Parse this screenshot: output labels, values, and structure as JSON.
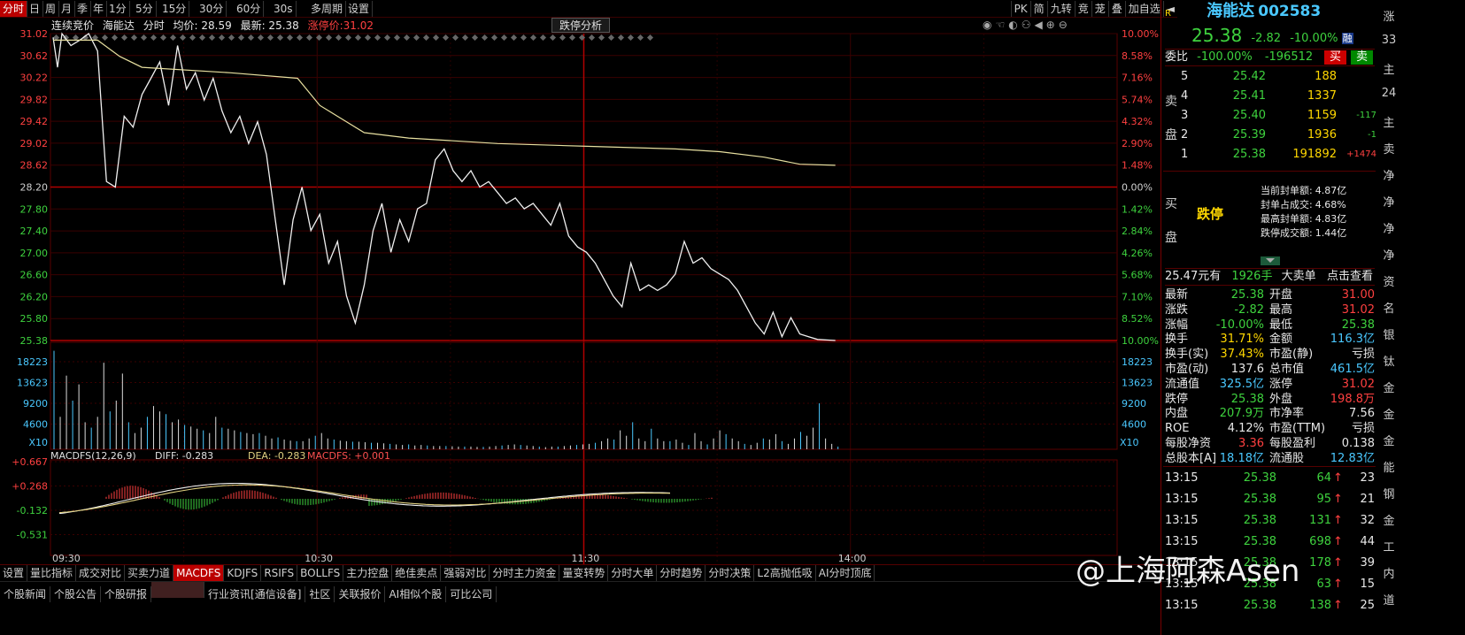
{
  "top_tabs": [
    "分时",
    "日",
    "周",
    "月",
    "季",
    "年",
    "1分",
    "5分",
    "15分",
    "30分",
    "60分",
    "30s",
    "多周期",
    "设置"
  ],
  "top_right": [
    "PK",
    "简",
    "九转",
    "竞",
    "茏",
    "叠",
    "加自选"
  ],
  "info": {
    "mode": "连续竞价",
    "name": "海能达",
    "label_fs": "分时",
    "avg": "均价: 28.59",
    "latest": "最新: 25.38",
    "limit": "涨停价:31.02"
  },
  "analysis_btn": "跌停分析",
  "price_axis": {
    "left": [
      "31.02",
      "30.62",
      "30.22",
      "29.82",
      "29.42",
      "29.02",
      "28.62",
      "28.20",
      "27.80",
      "27.40",
      "27.00",
      "26.60",
      "26.20",
      "25.80",
      "25.38"
    ],
    "right": [
      "10.00%",
      "8.58%",
      "7.16%",
      "5.74%",
      "4.32%",
      "2.90%",
      "1.48%",
      "0.00%",
      "1.42%",
      "2.84%",
      "4.26%",
      "5.68%",
      "7.10%",
      "8.52%",
      "10.00%"
    ]
  },
  "volume_axis": {
    "ticks": [
      "18223",
      "13623",
      "9200",
      "4600"
    ],
    "unit": "X10"
  },
  "macd_header": {
    "title": "MACDFS(12,26,9)",
    "diff": "DIFF: -0.283",
    "dea": "DEA: -0.283",
    "macdfs": "MACDFS: +0.001"
  },
  "macd_axis": [
    "+0.667",
    "+0.268",
    "-0.132",
    "-0.531"
  ],
  "time_labels": [
    "09:30",
    "10:30",
    "11:30",
    "14:00"
  ],
  "chart_data": {
    "type": "line",
    "title": "海能达 分时",
    "x_start": "09:30",
    "price_series": [
      [
        0,
        30.95
      ],
      [
        1,
        30.4
      ],
      [
        2,
        31.02
      ],
      [
        4,
        30.8
      ],
      [
        6,
        30.9
      ],
      [
        8,
        31.02
      ],
      [
        10,
        30.7
      ],
      [
        12,
        28.3
      ],
      [
        14,
        28.2
      ],
      [
        16,
        29.5
      ],
      [
        18,
        29.3
      ],
      [
        20,
        29.9
      ],
      [
        22,
        30.2
      ],
      [
        24,
        30.5
      ],
      [
        26,
        29.7
      ],
      [
        28,
        30.8
      ],
      [
        30,
        30.0
      ],
      [
        32,
        30.3
      ],
      [
        34,
        29.8
      ],
      [
        36,
        30.2
      ],
      [
        38,
        29.6
      ],
      [
        40,
        29.2
      ],
      [
        42,
        29.5
      ],
      [
        44,
        29.0
      ],
      [
        46,
        29.4
      ],
      [
        48,
        28.8
      ],
      [
        50,
        27.6
      ],
      [
        52,
        26.4
      ],
      [
        54,
        27.6
      ],
      [
        56,
        28.2
      ],
      [
        58,
        27.4
      ],
      [
        60,
        27.7
      ],
      [
        62,
        26.8
      ],
      [
        64,
        27.2
      ],
      [
        66,
        26.2
      ],
      [
        68,
        25.7
      ],
      [
        70,
        26.4
      ],
      [
        72,
        27.4
      ],
      [
        74,
        27.9
      ],
      [
        76,
        27.0
      ],
      [
        78,
        27.6
      ],
      [
        80,
        27.2
      ],
      [
        82,
        27.8
      ],
      [
        84,
        27.9
      ],
      [
        86,
        28.7
      ],
      [
        88,
        28.9
      ],
      [
        90,
        28.5
      ],
      [
        92,
        28.3
      ],
      [
        94,
        28.5
      ],
      [
        96,
        28.2
      ],
      [
        98,
        28.3
      ],
      [
        100,
        28.1
      ],
      [
        102,
        27.9
      ],
      [
        104,
        28.0
      ],
      [
        106,
        27.8
      ],
      [
        108,
        27.9
      ],
      [
        110,
        27.7
      ],
      [
        112,
        27.5
      ],
      [
        114,
        27.9
      ],
      [
        116,
        27.3
      ],
      [
        118,
        27.1
      ],
      [
        120,
        27.0
      ],
      [
        122,
        26.8
      ],
      [
        124,
        26.5
      ],
      [
        126,
        26.2
      ],
      [
        128,
        26.0
      ],
      [
        130,
        26.8
      ],
      [
        132,
        26.3
      ],
      [
        134,
        26.4
      ],
      [
        136,
        26.3
      ],
      [
        138,
        26.4
      ],
      [
        140,
        26.6
      ],
      [
        142,
        27.2
      ],
      [
        144,
        26.8
      ],
      [
        146,
        26.9
      ],
      [
        148,
        26.7
      ],
      [
        150,
        26.6
      ],
      [
        152,
        26.5
      ],
      [
        154,
        26.3
      ],
      [
        156,
        26.0
      ],
      [
        158,
        25.7
      ],
      [
        160,
        25.5
      ],
      [
        162,
        25.9
      ],
      [
        164,
        25.45
      ],
      [
        166,
        25.8
      ],
      [
        168,
        25.5
      ],
      [
        170,
        25.45
      ],
      [
        172,
        25.4
      ],
      [
        176,
        25.38
      ]
    ],
    "avg_series": [
      [
        0,
        30.9
      ],
      [
        10,
        30.9
      ],
      [
        15,
        30.6
      ],
      [
        20,
        30.4
      ],
      [
        40,
        30.3
      ],
      [
        55,
        30.2
      ],
      [
        60,
        29.7
      ],
      [
        70,
        29.2
      ],
      [
        80,
        29.1
      ],
      [
        100,
        29.0
      ],
      [
        120,
        28.95
      ],
      [
        140,
        28.9
      ],
      [
        150,
        28.85
      ],
      [
        160,
        28.75
      ],
      [
        168,
        28.62
      ],
      [
        176,
        28.6
      ]
    ],
    "volume": [
      18223,
      6000,
      13623,
      9000,
      12000,
      5000,
      4000,
      6000,
      16000,
      7000,
      9000,
      14000,
      5000,
      3000,
      4000,
      6000,
      8000,
      7000,
      6500,
      5000,
      5500,
      4500,
      4200,
      3800,
      3500,
      3000,
      6000,
      4000,
      3800,
      3500,
      3200,
      3000,
      2800,
      3000,
      2500,
      2000,
      2200,
      1800,
      1600,
      1500,
      1500,
      2000,
      2500,
      3000,
      2000,
      1800,
      1600,
      1500,
      1400,
      1400,
      1300,
      1200,
      1200,
      1100,
      1000,
      900,
      800,
      900,
      700,
      800,
      700,
      600,
      600,
      600,
      550,
      500,
      500,
      500,
      450,
      450,
      500,
      600,
      700,
      800,
      900,
      800,
      700,
      600,
      500,
      400,
      500,
      500,
      600,
      700,
      800,
      900,
      1000,
      1200,
      1500,
      2000,
      1800,
      3500,
      2500,
      5000,
      2000,
      1500,
      3800,
      2000,
      1500,
      1500,
      1800,
      1200,
      800,
      3000,
      1500,
      900,
      2000,
      3500,
      2800,
      2000,
      1500,
      1000,
      800,
      1200,
      2000,
      1800,
      2800,
      1500,
      1000,
      2000,
      3200,
      2500,
      4000,
      8500,
      2000,
      1000,
      500
    ],
    "ylim": [
      25.38,
      31.02
    ]
  },
  "right_panel": {
    "code_label": "R",
    "stock_name": "海能达",
    "stock_code": "002583",
    "price": "25.38",
    "change": "-2.82",
    "pct": "-10.00%",
    "mark": "融",
    "weibi_label": "委比",
    "weibi": "-100.00%",
    "weicha": "-196512",
    "buy_btn": "买",
    "sell_btn": "卖",
    "sell_label_1": "卖",
    "sell_label_2": "盘",
    "asks": [
      {
        "lvl": "5",
        "price": "25.42",
        "vol": "188",
        "chg": ""
      },
      {
        "lvl": "4",
        "price": "25.41",
        "vol": "1337",
        "chg": ""
      },
      {
        "lvl": "3",
        "price": "25.40",
        "vol": "1159",
        "chg": "-117"
      },
      {
        "lvl": "2",
        "price": "25.39",
        "vol": "1936",
        "chg": "-1"
      },
      {
        "lvl": "1",
        "price": "25.38",
        "vol": "191892",
        "chg": "+1474"
      }
    ],
    "buy_label_1": "买",
    "buy_label_2": "盘",
    "limit_status": "跌停",
    "seal_info": [
      {
        "k": "当前封单额:",
        "v": "4.87亿"
      },
      {
        "k": "封单占成交:",
        "v": "4.68%"
      },
      {
        "k": "最高封单额:",
        "v": "4.83亿"
      },
      {
        "k": "跌停成交额:",
        "v": "1.44亿"
      }
    ],
    "big_order": {
      "price": "25.47元有",
      "vol": "1926手",
      "label": "大卖单",
      "action": "点击查看"
    },
    "quote": [
      {
        "k1": "最新",
        "v1": "25.38",
        "k2": "开盘",
        "v2": "31.00",
        "c1": "green",
        "c2": "red"
      },
      {
        "k1": "涨跌",
        "v1": "-2.82",
        "k2": "最高",
        "v2": "31.02",
        "c1": "green",
        "c2": "red"
      },
      {
        "k1": "涨幅",
        "v1": "-10.00%",
        "k2": "最低",
        "v2": "25.38",
        "c1": "green",
        "c2": "green"
      },
      {
        "k1": "换手",
        "v1": "31.71%",
        "k2": "金额",
        "v2": "116.3亿",
        "c1": "yellow",
        "c2": "cyan"
      },
      {
        "k1": "换手(实)",
        "v1": "37.43%",
        "k2": "市盈(静)",
        "v2": "亏损",
        "c1": "yellow",
        "c2": "white"
      },
      {
        "k1": "市盈(动)",
        "v1": "137.6",
        "k2": "总市值",
        "v2": "461.5亿",
        "c1": "white",
        "c2": "cyan"
      },
      {
        "k1": "流通值",
        "v1": "325.5亿",
        "k2": "涨停",
        "v2": "31.02",
        "c1": "cyan",
        "c2": "red"
      },
      {
        "k1": "跌停",
        "v1": "25.38",
        "k2": "外盘",
        "v2": "198.8万",
        "c1": "green",
        "c2": "red"
      },
      {
        "k1": "内盘",
        "v1": "207.9万",
        "k2": "市净率",
        "v2": "7.56",
        "c1": "green",
        "c2": "white"
      },
      {
        "k1": "ROE",
        "v1": "4.12%",
        "k2": "市盈(TTM)",
        "v2": "亏损",
        "c1": "white",
        "c2": "white"
      },
      {
        "k1": "每股净资",
        "v1": "3.36",
        "k2": "每股盈利",
        "v2": "0.138",
        "c1": "red",
        "c2": "white"
      },
      {
        "k1": "总股本[A]",
        "v1": "18.18亿",
        "k2": "流通股",
        "v2": "12.83亿",
        "c1": "cyan",
        "c2": "cyan"
      }
    ],
    "ticks": [
      {
        "t": "13:15",
        "p": "25.38",
        "v": "64",
        "n": "23"
      },
      {
        "t": "13:15",
        "p": "25.38",
        "v": "95",
        "n": "21"
      },
      {
        "t": "13:15",
        "p": "25.38",
        "v": "131",
        "n": "32"
      },
      {
        "t": "13:15",
        "p": "25.38",
        "v": "698",
        "n": "44"
      },
      {
        "t": "13:15",
        "p": "25.38",
        "v": "178",
        "n": "39"
      },
      {
        "t": "13:15",
        "p": "25.38",
        "v": "63",
        "n": "15"
      },
      {
        "t": "13:15",
        "p": "25.38",
        "v": "138",
        "n": "25"
      }
    ]
  },
  "bottom_tabs": [
    "设置",
    "量比指标",
    "成交对比",
    "买卖力道",
    "MACDFS",
    "KDJFS",
    "RSIFS",
    "BOLLFS",
    "主力控盘",
    "绝佳卖点",
    "强弱对比",
    "分时主力资金",
    "量变转势",
    "分时大单",
    "分时趋势",
    "分时决策",
    "L2高抛低吸",
    "AI分时顶底"
  ],
  "news_tabs": [
    "个股新闻",
    "个股公告",
    "个股研报",
    "",
    "行业资讯[通信设备]",
    "社区",
    "关联报价",
    "AI相似个股",
    "可比公司"
  ],
  "side_strip": [
    "涨",
    "33",
    "主",
    "24",
    "主",
    "卖",
    "净",
    "净",
    "净",
    "净",
    "资",
    "名",
    "银",
    "钛",
    "金",
    "金",
    "金",
    "能",
    "钢",
    "金",
    "工",
    "内",
    "道"
  ],
  "watermark": "@上海阿森Asen"
}
